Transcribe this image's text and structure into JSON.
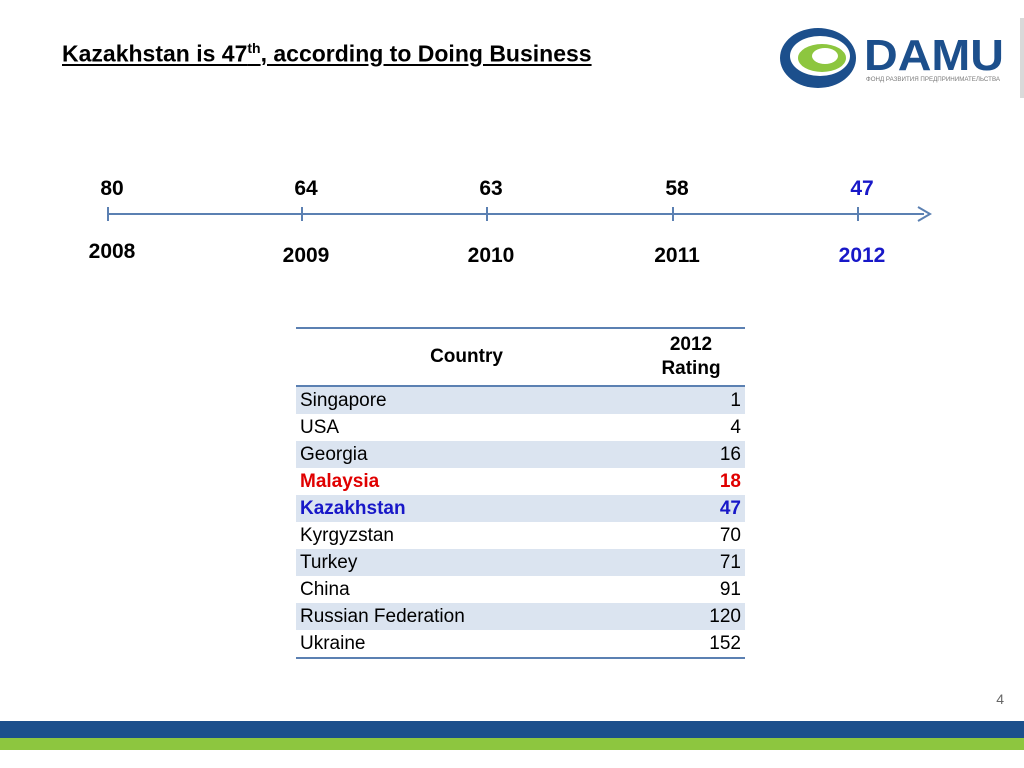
{
  "slide": {
    "title_pre": "Kazakhstan is 47",
    "title_sup": "th",
    "title_post": ", according to Doing Business",
    "page_number": "4"
  },
  "logo": {
    "name": "DAMU",
    "tagline": "ФОНД РАЗВИТИЯ ПРЕДПРИНИМАТЕЛЬСТВА",
    "icon": "damu-swoosh-icon",
    "colors": {
      "blue": "#1c4f8c",
      "green": "#8dc63f"
    }
  },
  "chart_data": [
    {
      "type": "line",
      "x": [
        "2008",
        "2009",
        "2010",
        "2011",
        "2012"
      ],
      "values": [
        80,
        64,
        63,
        58,
        47
      ],
      "highlight": {
        "year": "2012",
        "color": "#1818c8"
      },
      "colors": {
        "axis": "#5b80b2",
        "text": "#000000"
      }
    },
    {
      "type": "table",
      "columns": [
        "Country",
        "2012 Rating"
      ],
      "rows": [
        {
          "country": "Singapore",
          "rating": "1"
        },
        {
          "country": "USA",
          "rating": "4"
        },
        {
          "country": "Georgia",
          "rating": "16"
        },
        {
          "country": "Malaysia",
          "rating": "18",
          "highlight": "red"
        },
        {
          "country": "Kazakhstan",
          "rating": "47",
          "highlight": "blue"
        },
        {
          "country": "Kyrgyzstan",
          "rating": "70"
        },
        {
          "country": "Turkey",
          "rating": "71"
        },
        {
          "country": "China",
          "rating": "91"
        },
        {
          "country": "Russian Federation",
          "rating": "120"
        },
        {
          "country": "Ukraine",
          "rating": "152"
        }
      ],
      "colors": {
        "stripe": "#dbe4f0",
        "border": "#5b80b2",
        "red": "#e00000",
        "blue": "#1818c8"
      }
    }
  ]
}
